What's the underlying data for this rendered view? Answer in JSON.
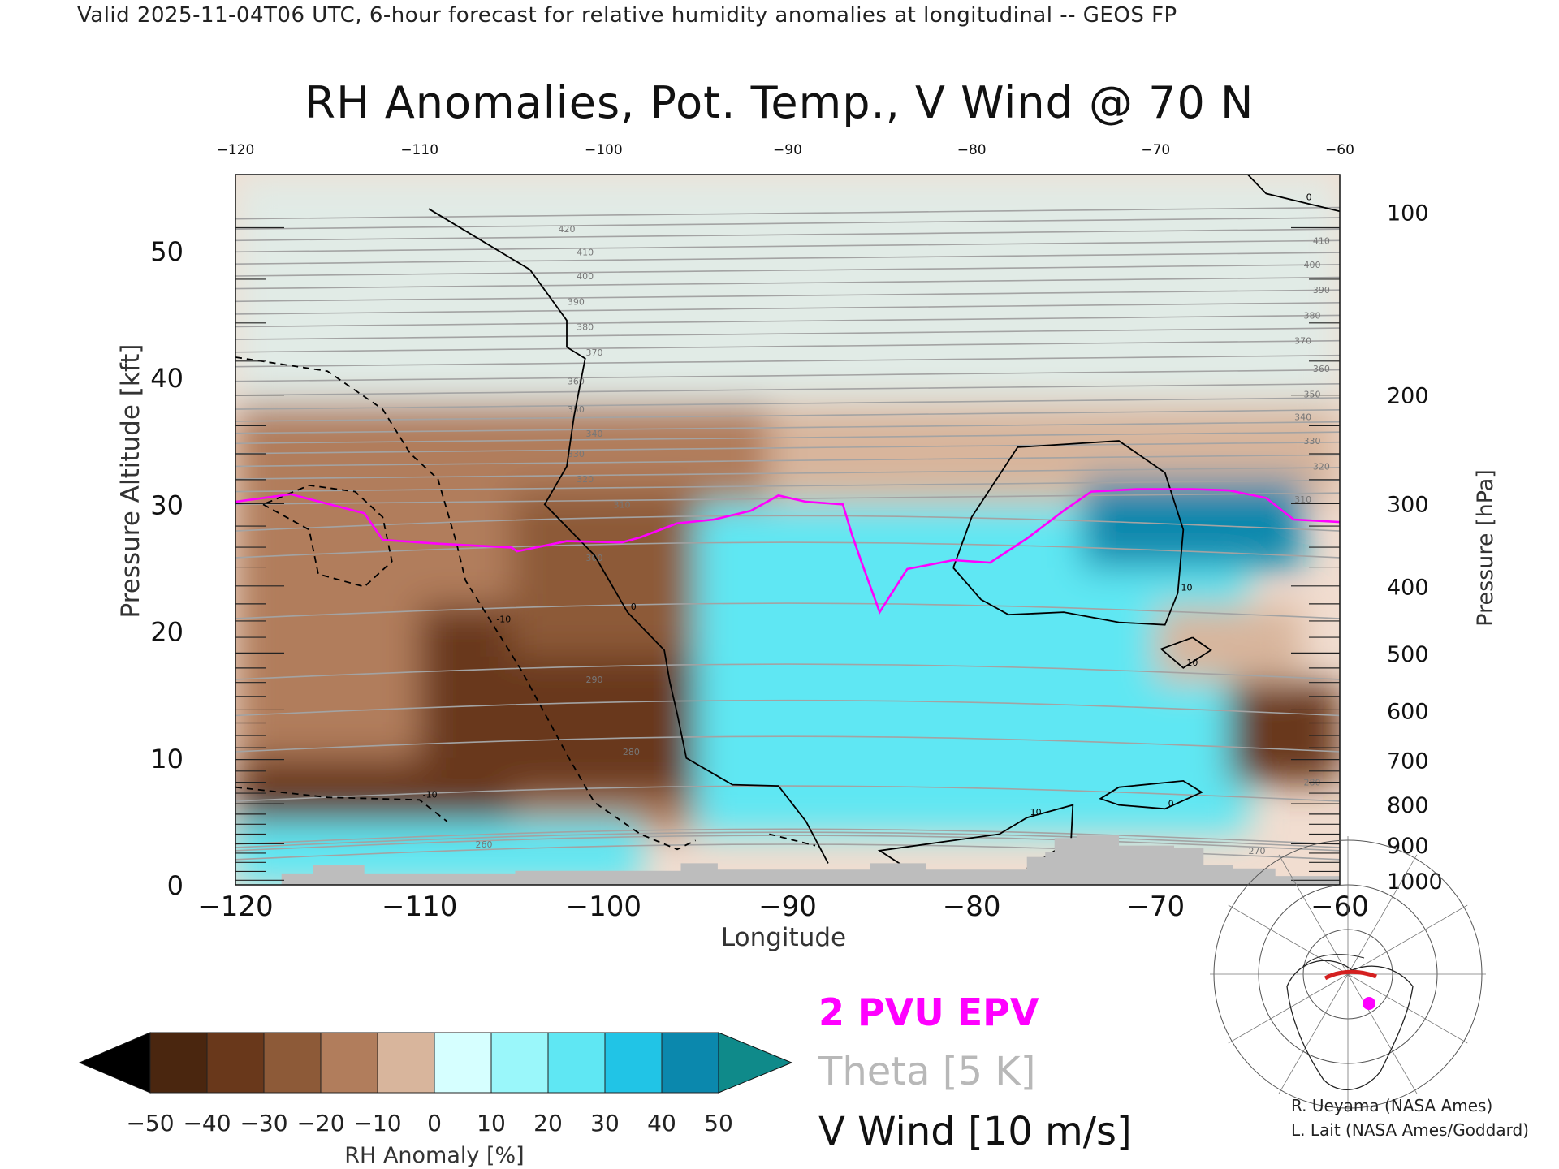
{
  "header": "Valid 2025-11-04T06 UTC, 6-hour forecast for relative humidity anomalies at longitudinal -- GEOS FP",
  "chart_data": {
    "type": "heatmap",
    "title": "RH Anomalies, Pot. Temp., V Wind @ 70 N",
    "xlabel": "Longitude",
    "ylabel": "Pressure Altitude [kft]",
    "ylabel_right": "Pressure [hPa]",
    "xlim": [
      -120,
      -60
    ],
    "ylim": [
      0,
      56
    ],
    "x_ticks": [
      -120,
      -110,
      -100,
      -90,
      -80,
      -70,
      -60
    ],
    "y_ticks": [
      0,
      10,
      20,
      30,
      40,
      50
    ],
    "pressure_ticks": [
      {
        "hPa": 100,
        "kft": 53.1
      },
      {
        "hPa": 200,
        "kft": 38.7
      },
      {
        "hPa": 300,
        "kft": 30.1
      },
      {
        "hPa": 400,
        "kft": 23.6
      },
      {
        "hPa": 500,
        "kft": 18.3
      },
      {
        "hPa": 600,
        "kft": 13.8
      },
      {
        "hPa": 700,
        "kft": 9.9
      },
      {
        "hPa": 800,
        "kft": 6.4
      },
      {
        "hPa": 900,
        "kft": 3.2
      },
      {
        "hPa": 1000,
        "kft": 0.4
      }
    ],
    "rh_regions": [
      {
        "lon": [
          -120,
          -60
        ],
        "kft": [
          38,
          56
        ],
        "rh_anomaly": 0
      },
      {
        "lon": [
          -120,
          -91
        ],
        "kft": [
          4,
          38
        ],
        "rh_anomaly": -20
      },
      {
        "lon": [
          -110,
          -94
        ],
        "kft": [
          7,
          22
        ],
        "rh_anomaly": -45
      },
      {
        "lon": [
          -120,
          -105
        ],
        "kft": [
          5,
          10
        ],
        "rh_anomaly": -45
      },
      {
        "lon": [
          -105,
          -94
        ],
        "kft": [
          18,
          31
        ],
        "rh_anomaly": -30
      },
      {
        "lon": [
          -91,
          -60
        ],
        "kft": [
          30,
          38
        ],
        "rh_anomaly": -10
      },
      {
        "lon": [
          -95,
          -65
        ],
        "kft": [
          4,
          30
        ],
        "rh_anomaly": 30
      },
      {
        "lon": [
          -74,
          -62
        ],
        "kft": [
          25,
          32
        ],
        "rh_anomaly": 45
      },
      {
        "lon": [
          -66,
          -60
        ],
        "kft": [
          8,
          16
        ],
        "rh_anomaly": -40
      },
      {
        "lon": [
          -70,
          -62
        ],
        "kft": [
          16,
          22
        ],
        "rh_anomaly": -15
      },
      {
        "lon": [
          -120,
          -98
        ],
        "kft": [
          0,
          5
        ],
        "rh_anomaly": 25
      }
    ],
    "theta_labels": [
      {
        "value": "420",
        "lon": -102,
        "kft": 51.7
      },
      {
        "value": "410",
        "lon": -101,
        "kft": 49.9
      },
      {
        "value": "400",
        "lon": -101,
        "kft": 48.0
      },
      {
        "value": "390",
        "lon": -101.5,
        "kft": 46.0
      },
      {
        "value": "380",
        "lon": -101,
        "kft": 44.0
      },
      {
        "value": "370",
        "lon": -100.5,
        "kft": 42.0
      },
      {
        "value": "360",
        "lon": -101.5,
        "kft": 39.7
      },
      {
        "value": "350",
        "lon": -101.5,
        "kft": 37.5
      },
      {
        "value": "340",
        "lon": -100.5,
        "kft": 35.6
      },
      {
        "value": "330",
        "lon": -101.5,
        "kft": 34.0
      },
      {
        "value": "320",
        "lon": -101,
        "kft": 32.0
      },
      {
        "value": "310",
        "lon": -99,
        "kft": 30.0
      },
      {
        "value": "300",
        "lon": -100.5,
        "kft": 25.8
      },
      {
        "value": "290",
        "lon": -100.5,
        "kft": 16.2
      },
      {
        "value": "280",
        "lon": -98.5,
        "kft": 10.5
      },
      {
        "value": "270",
        "lon": -64.5,
        "kft": 2.7
      },
      {
        "value": "260",
        "lon": -106.5,
        "kft": 3.2
      },
      {
        "value": "410",
        "lon": -61,
        "kft": 50.8
      },
      {
        "value": "400",
        "lon": -61.5,
        "kft": 48.9
      },
      {
        "value": "390",
        "lon": -61,
        "kft": 46.9
      },
      {
        "value": "380",
        "lon": -61.5,
        "kft": 44.9
      },
      {
        "value": "370",
        "lon": -62,
        "kft": 42.9
      },
      {
        "value": "360",
        "lon": -61,
        "kft": 40.7
      },
      {
        "value": "350",
        "lon": -61.5,
        "kft": 38.7
      },
      {
        "value": "340",
        "lon": -62,
        "kft": 36.9
      },
      {
        "value": "330",
        "lon": -61.5,
        "kft": 35.0
      },
      {
        "value": "320",
        "lon": -61,
        "kft": 33.0
      },
      {
        "value": "310",
        "lon": -62,
        "kft": 30.4
      },
      {
        "value": "280",
        "lon": -61.5,
        "kft": 8.1
      }
    ],
    "epv_2pvu": [
      [
        -120,
        30.2
      ],
      [
        -117,
        30.8
      ],
      [
        -113,
        29.3
      ],
      [
        -112,
        27.2
      ],
      [
        -109,
        26.9
      ],
      [
        -105,
        26.6
      ],
      [
        -104.7,
        26.3
      ],
      [
        -102,
        27.1
      ],
      [
        -99,
        27.0
      ],
      [
        -98,
        27.4
      ],
      [
        -96,
        28.5
      ],
      [
        -94,
        28.8
      ],
      [
        -92,
        29.5
      ],
      [
        -90.5,
        30.7
      ],
      [
        -89,
        30.2
      ],
      [
        -87,
        30.0
      ],
      [
        -86.5,
        27.6
      ],
      [
        -86,
        25.5
      ],
      [
        -85,
        21.5
      ],
      [
        -83.5,
        24.9
      ],
      [
        -81,
        25.6
      ],
      [
        -79,
        25.4
      ],
      [
        -77,
        27.3
      ],
      [
        -75,
        29.5
      ],
      [
        -73.5,
        31.0
      ],
      [
        -71,
        31.2
      ],
      [
        -68,
        31.2
      ],
      [
        -66,
        31.1
      ],
      [
        -64,
        30.5
      ],
      [
        -62.5,
        28.8
      ],
      [
        -60,
        28.6
      ]
    ],
    "vwind_contours": [
      {
        "label": "0",
        "style": "solid",
        "points": [
          [
            -109.5,
            53.3
          ],
          [
            -104,
            48.5
          ],
          [
            -102,
            44.5
          ],
          [
            -102,
            42.4
          ],
          [
            -101,
            41.5
          ],
          [
            -101.6,
            37.0
          ],
          [
            -102,
            33.0
          ],
          [
            -103.2,
            30.0
          ],
          [
            -100.5,
            26.0
          ],
          [
            -98.7,
            21.5
          ],
          [
            -96.7,
            18.5
          ],
          [
            -96.4,
            16.0
          ],
          [
            -96,
            13.5
          ],
          [
            -95.5,
            10.0
          ],
          [
            -93,
            7.9
          ],
          [
            -90.5,
            7.8
          ],
          [
            -89,
            5.0
          ],
          [
            -87.8,
            1.7
          ]
        ]
      },
      {
        "label": "10",
        "style": "solid",
        "points": [
          [
            -81,
            25.0
          ],
          [
            -80,
            29.0
          ],
          [
            -77.5,
            34.5
          ],
          [
            -72,
            35.0
          ],
          [
            -69.5,
            32.5
          ],
          [
            -68.5,
            28.0
          ],
          [
            -68.8,
            23.0
          ],
          [
            -69.5,
            20.5
          ],
          [
            -72,
            20.7
          ],
          [
            -75,
            21.5
          ],
          [
            -78,
            21.3
          ],
          [
            -79.5,
            22.5
          ],
          [
            -81,
            25.0
          ]
        ]
      },
      {
        "label": "10",
        "style": "solid",
        "points": [
          [
            -68,
            19.5
          ],
          [
            -67,
            18.5
          ],
          [
            -68.5,
            17.1
          ],
          [
            -69.7,
            18.6
          ],
          [
            -68,
            19.5
          ]
        ]
      },
      {
        "label": "0",
        "style": "solid",
        "points": [
          [
            -72,
            7.7
          ],
          [
            -68.5,
            8.2
          ],
          [
            -67.5,
            7.3
          ],
          [
            -69.5,
            6.0
          ],
          [
            -72,
            6.3
          ],
          [
            -73,
            6.8
          ],
          [
            -72,
            7.7
          ]
        ]
      },
      {
        "label": "10",
        "style": "solid",
        "points": [
          [
            -83.5,
            1.3
          ],
          [
            -85,
            2.7
          ],
          [
            -82,
            3.3
          ],
          [
            -78.5,
            4.0
          ],
          [
            -77,
            5.3
          ],
          [
            -74.5,
            6.3
          ],
          [
            -74.6,
            3.5
          ],
          [
            -77,
            1.3
          ]
        ]
      },
      {
        "label": "0",
        "style": "solid",
        "points": [
          [
            -65,
            56
          ],
          [
            -64,
            54.5
          ],
          [
            -62,
            53.8
          ],
          [
            -60,
            53.1
          ]
        ]
      },
      {
        "label": "-10",
        "style": "dashed",
        "points": [
          [
            -120,
            41.6
          ],
          [
            -115,
            40.5
          ],
          [
            -112,
            37.5
          ],
          [
            -110.5,
            34.0
          ],
          [
            -109,
            32.0
          ],
          [
            -108,
            27.0
          ],
          [
            -107.5,
            24.0
          ],
          [
            -106,
            20.5
          ],
          [
            -104.5,
            17.0
          ],
          [
            -103,
            13.0
          ],
          [
            -102,
            10.3
          ],
          [
            -100.5,
            6.5
          ],
          [
            -98,
            4.0
          ],
          [
            -96,
            2.8
          ],
          [
            -95,
            3.5
          ]
        ]
      },
      {
        "label": "",
        "style": "dashed",
        "points": [
          [
            -118.5,
            30.0
          ],
          [
            -116,
            28.0
          ],
          [
            -115.5,
            24.5
          ],
          [
            -113,
            23.5
          ],
          [
            -111.5,
            25.5
          ],
          [
            -112,
            29.0
          ],
          [
            -113.5,
            31.0
          ],
          [
            -116,
            31.5
          ],
          [
            -118.5,
            30.0
          ]
        ]
      },
      {
        "label": "-10",
        "style": "dashed",
        "points": [
          [
            -120,
            7.7
          ],
          [
            -115,
            6.9
          ],
          [
            -110,
            6.7
          ],
          [
            -108.5,
            5.0
          ]
        ]
      },
      {
        "label": "",
        "style": "dashed",
        "points": [
          [
            -91,
            4.0
          ],
          [
            -88.5,
            3.1
          ]
        ]
      }
    ],
    "topography": [
      [
        -120,
        0
      ],
      [
        -117.5,
        0
      ],
      [
        -117.5,
        0.9
      ],
      [
        -115.8,
        0.9
      ],
      [
        -115.8,
        1.6
      ],
      [
        -113,
        1.6
      ],
      [
        -113,
        0.9
      ],
      [
        -104.8,
        0.9
      ],
      [
        -104.8,
        1.1
      ],
      [
        -95.8,
        1.1
      ],
      [
        -95.8,
        1.7
      ],
      [
        -93.8,
        1.7
      ],
      [
        -93.8,
        1.2
      ],
      [
        -85.5,
        1.2
      ],
      [
        -85.5,
        1.7
      ],
      [
        -82.5,
        1.7
      ],
      [
        -82.5,
        1.2
      ],
      [
        -77,
        1.2
      ],
      [
        -77,
        2.2
      ],
      [
        -76,
        2.2
      ],
      [
        -76,
        2.6
      ],
      [
        -75.5,
        2.6
      ],
      [
        -75.5,
        3.7
      ],
      [
        -74.3,
        3.7
      ],
      [
        -74.3,
        3.9
      ],
      [
        -72,
        3.9
      ],
      [
        -72,
        3.1
      ],
      [
        -69,
        3.1
      ],
      [
        -69,
        2.9
      ],
      [
        -67.4,
        2.9
      ],
      [
        -67.4,
        1.6
      ],
      [
        -65.8,
        1.6
      ],
      [
        -65.8,
        1.3
      ],
      [
        -63.5,
        1.3
      ],
      [
        -63.5,
        0.7
      ],
      [
        -60,
        0.7
      ],
      [
        -60,
        0
      ]
    ]
  },
  "colorbar": {
    "label": "RH Anomaly [%]",
    "ticks": [
      "−50",
      "−40",
      "−30",
      "−20",
      "−10",
      "0",
      "10",
      "20",
      "30",
      "40",
      "50"
    ],
    "colors": [
      "#4a260f",
      "#69381b",
      "#8d5a38",
      "#b17d5c",
      "#d8b59c",
      "#f1ddd0",
      "#d6ffff",
      "#9af7fa",
      "#5fe7f3",
      "#21c4e6",
      "#0b88ad"
    ],
    "under_color": "#000000",
    "over_color": "#0f8a8a"
  },
  "legend": {
    "epv": "2 PVU EPV",
    "theta": "Theta [5 K]",
    "vwind": "V Wind [10 m/s]"
  },
  "credits": [
    "R. Ueyama (NASA Ames)",
    "L. Lait (NASA Ames/Goddard)"
  ]
}
